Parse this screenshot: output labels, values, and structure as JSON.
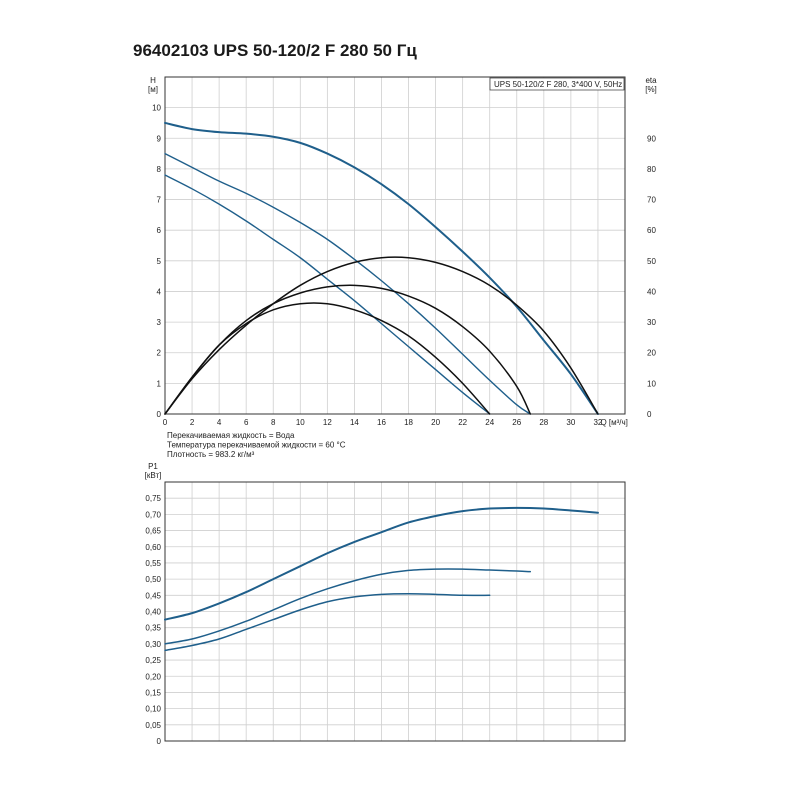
{
  "title": "96402103 UPS 50-120/2 F 280 50 Гц",
  "colors": {
    "pump_curve": "#1f5f8b",
    "efficiency_curve": "#111111",
    "grid": "#cfcfcf",
    "axis": "#333333"
  },
  "chart_data": [
    {
      "type": "line",
      "legend": "UPS 50-120/2 F 280, 3*400 V, 50Hz",
      "legend_position": "top-right",
      "grid": true,
      "xlabel": "Q [м³/ч]",
      "xlim": [
        0,
        34
      ],
      "x_ticks": [
        "0",
        "2",
        "4",
        "6",
        "8",
        "10",
        "12",
        "14",
        "16",
        "18",
        "20",
        "22",
        "24",
        "26",
        "28",
        "30",
        "32"
      ],
      "ylabel": [
        "H",
        "[м]"
      ],
      "ylim": [
        0,
        11
      ],
      "y_ticks": [
        "0",
        "1",
        "2",
        "3",
        "4",
        "5",
        "6",
        "7",
        "8",
        "9",
        "10"
      ],
      "y2label": [
        "eta",
        "[%]"
      ],
      "y2lim": [
        0,
        110
      ],
      "y2_ticks": [
        "0",
        "10",
        "20",
        "30",
        "40",
        "50",
        "60",
        "70",
        "80",
        "90"
      ],
      "notes": [
        "Перекачиваемая жидкость = Вода",
        "Температура перекачиваемой жидкости = 60 °C",
        "Плотность = 983.2 кг/м³"
      ],
      "series": [
        {
          "kind": "head",
          "axis": "left",
          "x": [
            0,
            2,
            4,
            6,
            8,
            10,
            12,
            14,
            16,
            18,
            20,
            22,
            24,
            26,
            28,
            30,
            32
          ],
          "y": [
            9.5,
            9.3,
            9.2,
            9.15,
            9.05,
            8.85,
            8.5,
            8.05,
            7.5,
            6.85,
            6.1,
            5.3,
            4.45,
            3.5,
            2.4,
            1.3,
            0
          ]
        },
        {
          "kind": "head",
          "axis": "left",
          "x": [
            0,
            2,
            4,
            6,
            8,
            10,
            12,
            14,
            16,
            18,
            20,
            22,
            24,
            26,
            27
          ],
          "y": [
            8.5,
            8.05,
            7.6,
            7.2,
            6.75,
            6.25,
            5.7,
            5.05,
            4.35,
            3.6,
            2.8,
            1.95,
            1.1,
            0.3,
            0
          ]
        },
        {
          "kind": "head",
          "axis": "left",
          "x": [
            0,
            2,
            4,
            6,
            8,
            10,
            12,
            14,
            16,
            18,
            20,
            22,
            24
          ],
          "y": [
            7.8,
            7.35,
            6.85,
            6.3,
            5.7,
            5.1,
            4.4,
            3.7,
            2.95,
            2.2,
            1.45,
            0.7,
            0
          ]
        },
        {
          "kind": "efficiency",
          "axis": "right",
          "x": [
            0,
            2,
            4,
            6,
            8,
            10,
            12,
            14,
            16,
            18,
            20,
            22,
            24,
            26,
            28,
            30,
            32
          ],
          "y": [
            0,
            11.5,
            21,
            29,
            36,
            42,
            46.5,
            49.5,
            51,
            51,
            49.5,
            46.5,
            42,
            35.5,
            27,
            15,
            0
          ]
        },
        {
          "kind": "efficiency",
          "axis": "right",
          "x": [
            0,
            2,
            4,
            6,
            8,
            10,
            12,
            14,
            16,
            18,
            20,
            22,
            24,
            26,
            27
          ],
          "y": [
            0,
            12,
            22.5,
            30.5,
            36,
            39.5,
            41.5,
            42,
            41,
            38.5,
            34.5,
            28.5,
            20.5,
            9,
            0
          ]
        },
        {
          "kind": "efficiency",
          "axis": "right",
          "x": [
            0,
            2,
            4,
            6,
            8,
            10,
            12,
            14,
            16,
            18,
            20,
            22,
            24
          ],
          "y": [
            0,
            12,
            22.5,
            29.5,
            34,
            36,
            36,
            34,
            30.5,
            25.5,
            18.5,
            10,
            0
          ]
        }
      ]
    },
    {
      "type": "line",
      "grid": true,
      "xlim": [
        0,
        34
      ],
      "ylabel": [
        "P1",
        "[кВт]"
      ],
      "ylim": [
        0,
        0.8
      ],
      "y_ticks": [
        "0",
        "0,05",
        "0,10",
        "0,15",
        "0,20",
        "0,25",
        "0,30",
        "0,35",
        "0,40",
        "0,45",
        "0,50",
        "0,55",
        "0,60",
        "0,65",
        "0,70",
        "0,75"
      ],
      "series": [
        {
          "kind": "power",
          "x": [
            0,
            2,
            4,
            6,
            8,
            10,
            12,
            14,
            16,
            18,
            20,
            22,
            24,
            26,
            28,
            30,
            32
          ],
          "y": [
            0.375,
            0.395,
            0.425,
            0.46,
            0.5,
            0.54,
            0.58,
            0.615,
            0.645,
            0.675,
            0.695,
            0.71,
            0.718,
            0.72,
            0.718,
            0.712,
            0.705
          ]
        },
        {
          "kind": "power",
          "x": [
            0,
            2,
            4,
            6,
            8,
            10,
            12,
            14,
            16,
            18,
            20,
            22,
            24,
            26,
            27
          ],
          "y": [
            0.3,
            0.315,
            0.34,
            0.37,
            0.405,
            0.44,
            0.47,
            0.495,
            0.515,
            0.527,
            0.531,
            0.531,
            0.528,
            0.525,
            0.523
          ]
        },
        {
          "kind": "power",
          "x": [
            0,
            2,
            4,
            6,
            8,
            10,
            12,
            14,
            16,
            18,
            20,
            22,
            24
          ],
          "y": [
            0.28,
            0.295,
            0.315,
            0.345,
            0.375,
            0.405,
            0.43,
            0.445,
            0.453,
            0.455,
            0.453,
            0.45,
            0.45
          ]
        }
      ]
    }
  ]
}
